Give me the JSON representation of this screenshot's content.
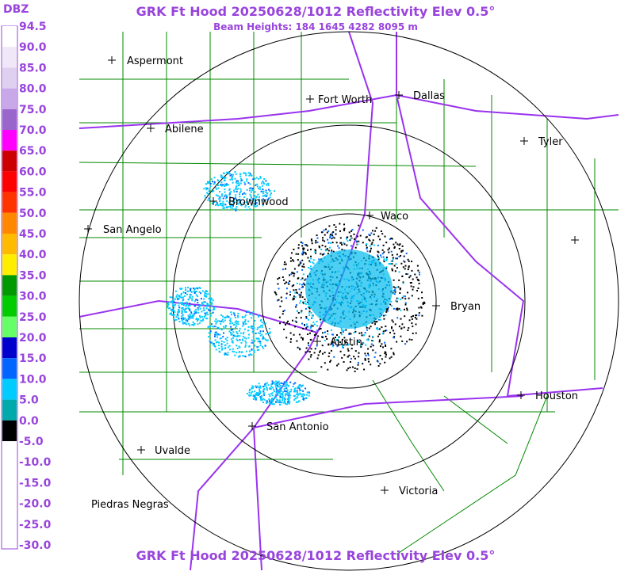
{
  "header": {
    "title": "GRK Ft Hood 20250628/1012 Reflectivity Elev 0.5°",
    "subtitle": "Beam Heights: 184 1645 4282 8095 m"
  },
  "footer": {
    "title": "GRK Ft Hood 20250628/1012 Reflectivity Elev 0.5°"
  },
  "colorbar": {
    "unit": "DBZ",
    "labels": [
      "94.5",
      "90.0",
      "85.0",
      "80.0",
      "75.0",
      "70.0",
      "65.0",
      "60.0",
      "55.0",
      "50.0",
      "45.0",
      "40.0",
      "35.0",
      "30.0",
      "25.0",
      "20.0",
      "15.0",
      "10.0",
      "5.0",
      "0.0",
      "-5.0",
      "-10.0",
      "-15.0",
      "-20.0",
      "-25.0",
      "-30.0"
    ],
    "colors": [
      "#ffffff",
      "#f0e8f8",
      "#e0d0f0",
      "#c8a8e8",
      "#9966cc",
      "#ff00ff",
      "#cc0000",
      "#ff0000",
      "#ff3300",
      "#ff8800",
      "#ffbb00",
      "#ffee00",
      "#009900",
      "#00cc00",
      "#66ff66",
      "#0000cc",
      "#0066ff",
      "#00ccff",
      "#00aaaa",
      "#000000",
      "#ffffff",
      "#ffffff",
      "#ffffff",
      "#ffffff",
      "#ffffff"
    ]
  },
  "cities": [
    "Aspermont",
    "Fort Worth",
    "Dallas",
    "Abilene",
    "Tyler",
    "Brownwood",
    "Waco",
    "San Angelo",
    "Bryan",
    "Austin",
    "Houston",
    "San Antonio",
    "Uvalde",
    "Victoria",
    "Piedras Negras"
  ]
}
